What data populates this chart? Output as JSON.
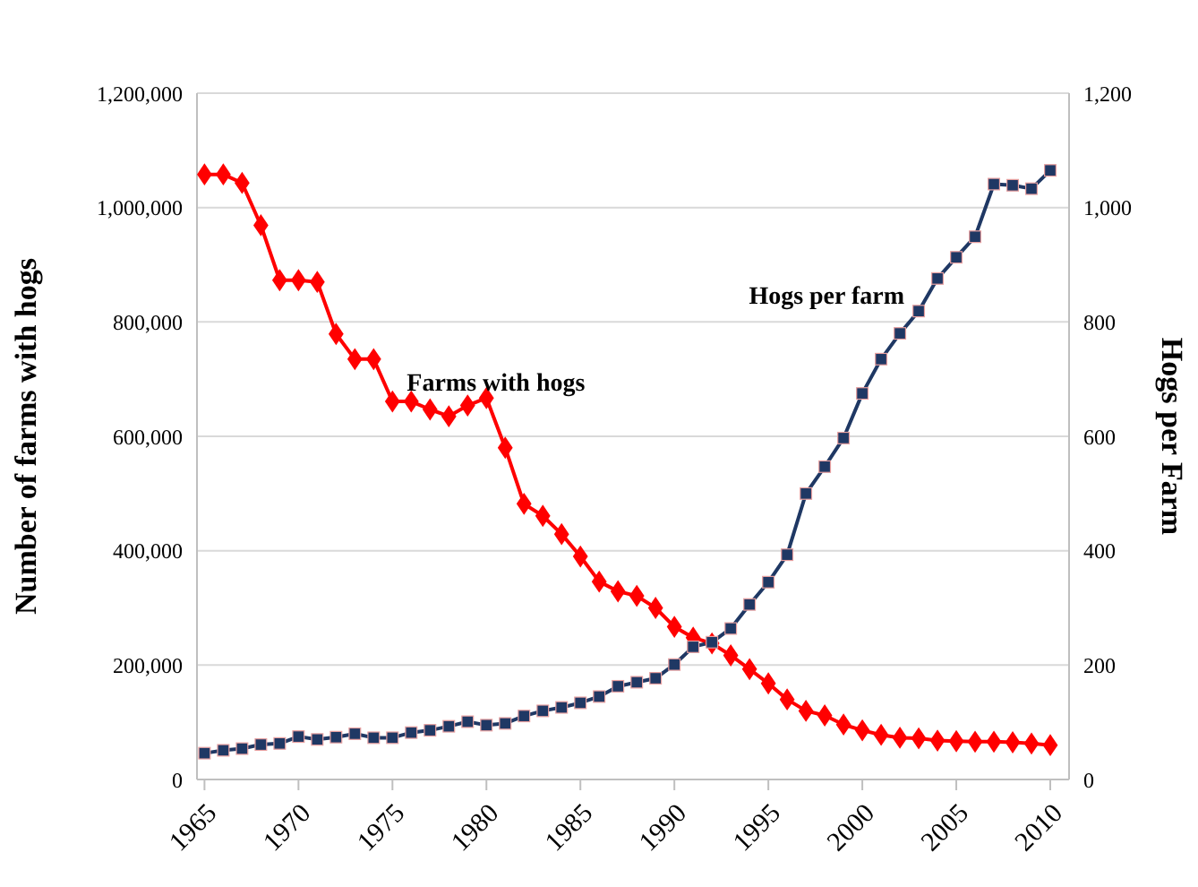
{
  "chart_data": {
    "type": "line",
    "x": [
      1965,
      1966,
      1967,
      1968,
      1969,
      1970,
      1971,
      1972,
      1973,
      1974,
      1975,
      1976,
      1977,
      1978,
      1979,
      1980,
      1981,
      1982,
      1983,
      1984,
      1985,
      1986,
      1987,
      1988,
      1989,
      1990,
      1991,
      1992,
      1993,
      1994,
      1995,
      1996,
      1997,
      1998,
      1999,
      2000,
      2001,
      2002,
      2003,
      2004,
      2005,
      2006,
      2007,
      2008,
      2009,
      2010
    ],
    "series": [
      {
        "name": "Farms with hogs",
        "color": "#ff0000",
        "marker": "diamond",
        "values": [
          1058000,
          1058000,
          1043000,
          969000,
          873000,
          873000,
          870000,
          779000,
          735000,
          735000,
          661000,
          661000,
          647000,
          635000,
          654000,
          667000,
          580000,
          482000,
          461000,
          429000,
          390000,
          346000,
          329000,
          321000,
          300000,
          267000,
          248000,
          238000,
          217000,
          193000,
          168000,
          140000,
          120000,
          112000,
          96000,
          86000,
          78000,
          73000,
          72000,
          68000,
          67000,
          66000,
          66000,
          65000,
          63000,
          60000
        ]
      },
      {
        "name": "Hogs per farm",
        "color": "#1f3864",
        "marker": "square",
        "axis": "y2",
        "values": [
          46,
          51,
          54,
          61,
          63,
          75,
          70,
          74,
          80,
          73,
          73,
          82,
          86,
          93,
          101,
          95,
          98,
          111,
          120,
          126,
          134,
          145,
          163,
          170,
          177,
          201,
          232,
          240,
          264,
          306,
          345,
          393,
          500,
          547,
          597,
          675,
          735,
          780,
          819,
          876,
          913,
          949,
          1041,
          1039,
          1033,
          1065
        ]
      }
    ],
    "ylabel": "Number of farms with hogs",
    "y2label": "Hogs per Farm",
    "xlim": [
      1964.6,
      2011
    ],
    "xticks": [
      1965,
      1970,
      1975,
      1980,
      1985,
      1990,
      1995,
      2000,
      2005,
      2010
    ],
    "ylim": [
      0,
      1200000
    ],
    "yticks": [
      0,
      {
        "value": 200000,
        "label": "200,000"
      },
      {
        "value": 400000,
        "label": "400,000"
      },
      {
        "value": 600000,
        "label": "600,000"
      },
      {
        "value": 800000,
        "label": "800,000"
      },
      {
        "value": 1000000,
        "label": "1,000,000"
      },
      {
        "value": 1200000,
        "label": "1,200,000"
      }
    ],
    "y2lim": [
      0,
      1200
    ],
    "y2ticks": [
      0,
      200,
      400,
      600,
      800,
      {
        "value": 1000,
        "label": "1,000"
      },
      {
        "value": 1200,
        "label": "1,200"
      }
    ],
    "grid": "y",
    "legend": false,
    "line_style": "solid"
  }
}
